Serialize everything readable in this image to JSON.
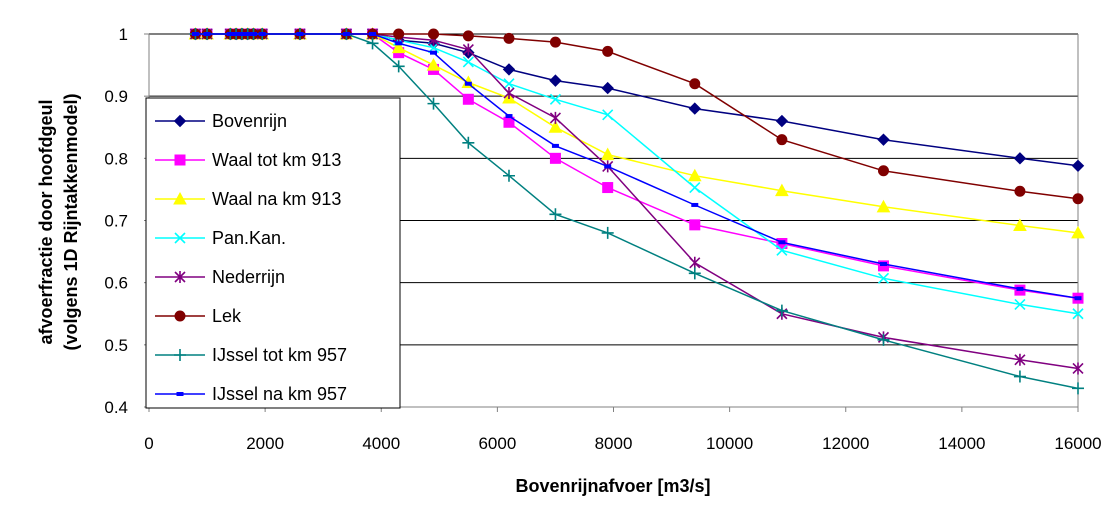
{
  "chart_data": {
    "type": "line",
    "title": "",
    "xlabel": "Bovenrijnafvoer [m3/s]",
    "ylabel_lines": [
      "afvoerfractie door hoofdgeul",
      "(volgens 1D Rijntakkenmodel)"
    ],
    "xlim": [
      0,
      16000
    ],
    "ylim": [
      0.4,
      1.0
    ],
    "x_ticks": [
      "0",
      "2000",
      "4000",
      "6000",
      "8000",
      "10000",
      "12000",
      "14000",
      "16000"
    ],
    "y_ticks": [
      "0.4",
      "0.5",
      "0.6",
      "0.7",
      "0.8",
      "0.9",
      "1"
    ],
    "grid": "horizontal",
    "legend_position": "left",
    "x": [
      800,
      1000,
      1400,
      1500,
      1600,
      1700,
      1800,
      1950,
      2600,
      3400,
      3850,
      4300,
      4900,
      5500,
      6200,
      7000,
      7900,
      9400,
      10900,
      12650,
      15000,
      16000
    ],
    "series": [
      {
        "name": "Bovenrijn",
        "color": "#000080",
        "marker": "diamond",
        "values": [
          1,
          1,
          1,
          1,
          1,
          1,
          1,
          1,
          1,
          1,
          1,
          0.99,
          0.985,
          0.97,
          0.943,
          0.925,
          0.913,
          0.88,
          0.86,
          0.83,
          0.8,
          0.788
        ]
      },
      {
        "name": "Waal tot km 913",
        "color": "#FF00FF",
        "marker": "square",
        "values": [
          1,
          1,
          1,
          1,
          1,
          1,
          1,
          1,
          1,
          1,
          1,
          0.97,
          0.943,
          0.895,
          0.858,
          0.8,
          0.753,
          0.693,
          0.663,
          0.627,
          0.588,
          0.575
        ]
      },
      {
        "name": "Waal na km 913",
        "color": "#FFFF00",
        "marker": "triangle",
        "values": [
          1,
          1,
          1,
          1,
          1,
          1,
          1,
          1,
          1,
          1,
          1,
          0.978,
          0.95,
          0.922,
          0.897,
          0.85,
          0.806,
          0.772,
          0.748,
          0.722,
          0.692,
          0.68
        ]
      },
      {
        "name": "Pan.Kan.",
        "color": "#00FFFF",
        "marker": "x",
        "values": [
          1,
          1,
          1,
          1,
          1,
          1,
          1,
          1,
          1,
          1,
          1,
          0.99,
          0.978,
          0.955,
          0.92,
          0.895,
          0.87,
          0.753,
          0.652,
          0.607,
          0.565,
          0.55
        ]
      },
      {
        "name": "Nederrijn",
        "color": "#800080",
        "marker": "star",
        "values": [
          1,
          1,
          1,
          1,
          1,
          1,
          1,
          1,
          1,
          1,
          1,
          0.995,
          0.99,
          0.975,
          0.905,
          0.865,
          0.787,
          0.632,
          0.55,
          0.512,
          0.476,
          0.462
        ]
      },
      {
        "name": "Lek",
        "color": "#800000",
        "marker": "circle",
        "values": [
          1,
          1,
          1,
          1,
          1,
          1,
          1,
          1,
          1,
          1,
          1,
          1,
          1,
          0.997,
          0.993,
          0.987,
          0.972,
          0.92,
          0.83,
          0.78,
          0.747,
          0.735
        ]
      },
      {
        "name": "IJssel tot km 957",
        "color": "#008080",
        "marker": "plus",
        "values": [
          1,
          1,
          1,
          1,
          1,
          1,
          1,
          1,
          1,
          1,
          0.985,
          0.948,
          0.888,
          0.825,
          0.772,
          0.71,
          0.68,
          0.615,
          0.555,
          0.508,
          0.449,
          0.43
        ]
      },
      {
        "name": "IJssel na km 957",
        "color": "#0000FF",
        "marker": "dash",
        "values": [
          1,
          1,
          1,
          1,
          1,
          1,
          1,
          1,
          1,
          1,
          1,
          0.985,
          0.97,
          0.92,
          0.868,
          0.82,
          0.787,
          0.725,
          0.665,
          0.63,
          0.59,
          0.575
        ]
      }
    ]
  }
}
